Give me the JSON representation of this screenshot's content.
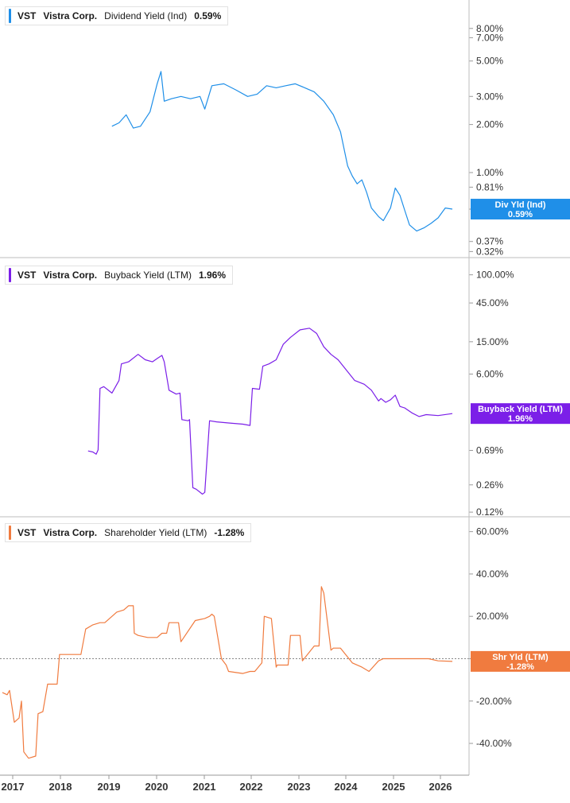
{
  "chart_data": [
    {
      "type": "line",
      "ticker": "VST",
      "company": "Vistra Corp.",
      "metric": "Dividend Yield (Ind)",
      "current_value": "0.59%",
      "callout": [
        "Div Yld (Ind)",
        "0.59%"
      ],
      "color": "#1f8fe8",
      "scale": "log",
      "ylim": [
        0.3,
        11.0
      ],
      "y_ticks": [
        {
          "value": 8.0,
          "label": "8.00%"
        },
        {
          "value": 7.0,
          "label": "7.00%"
        },
        {
          "value": 5.0,
          "label": "5.00%"
        },
        {
          "value": 3.0,
          "label": "3.00%"
        },
        {
          "value": 2.0,
          "label": "2.00%"
        },
        {
          "value": 1.0,
          "label": "1.00%"
        },
        {
          "value": 0.81,
          "label": "0.81%"
        },
        {
          "value": 0.59,
          "label": "0.59%"
        },
        {
          "value": 0.37,
          "label": "0.37%"
        },
        {
          "value": 0.32,
          "label": "0.32%"
        }
      ],
      "x": [
        2019.15,
        2019.3,
        2019.45,
        2019.6,
        2019.75,
        2019.95,
        2020.1,
        2020.18,
        2020.25,
        2020.4,
        2020.6,
        2020.8,
        2021.0,
        2021.1,
        2021.25,
        2021.5,
        2021.75,
        2022.0,
        2022.2,
        2022.4,
        2022.6,
        2022.8,
        2023.0,
        2023.2,
        2023.4,
        2023.6,
        2023.8,
        2023.95,
        2024.1,
        2024.2,
        2024.3,
        2024.4,
        2024.5,
        2024.6,
        2024.75,
        2024.85,
        2025.0,
        2025.1,
        2025.2,
        2025.3,
        2025.4,
        2025.55,
        2025.7,
        2025.85,
        2026.0,
        2026.15,
        2026.3
      ],
      "values": [
        1.95,
        2.05,
        2.3,
        1.9,
        1.95,
        2.4,
        3.6,
        4.3,
        2.8,
        2.9,
        3.0,
        2.9,
        3.0,
        2.5,
        3.5,
        3.6,
        3.3,
        3.0,
        3.1,
        3.5,
        3.4,
        3.5,
        3.6,
        3.4,
        3.2,
        2.8,
        2.3,
        1.8,
        1.1,
        0.95,
        0.85,
        0.9,
        0.75,
        0.6,
        0.53,
        0.5,
        0.6,
        0.8,
        0.72,
        0.58,
        0.47,
        0.43,
        0.45,
        0.48,
        0.52,
        0.6,
        0.59
      ]
    },
    {
      "type": "line",
      "ticker": "VST",
      "company": "Vistra Corp.",
      "metric": "Buyback Yield (LTM)",
      "current_value": "1.96%",
      "callout": [
        "Buyback Yield (LTM)",
        "1.96%"
      ],
      "color": "#7b1fe8",
      "scale": "log",
      "ylim": [
        0.11,
        130
      ],
      "y_ticks": [
        {
          "value": 100,
          "label": "100.00%"
        },
        {
          "value": 45,
          "label": "45.00%"
        },
        {
          "value": 15,
          "label": "15.00%"
        },
        {
          "value": 6,
          "label": "6.00%"
        },
        {
          "value": 0.69,
          "label": "0.69%"
        },
        {
          "value": 0.26,
          "label": "0.26%"
        },
        {
          "value": 0.12,
          "label": "0.12%"
        }
      ],
      "x": [
        2018.65,
        2018.75,
        2018.82,
        2018.86,
        2018.9,
        2018.98,
        2019.15,
        2019.3,
        2019.35,
        2019.5,
        2019.7,
        2019.85,
        2020.0,
        2020.12,
        2020.2,
        2020.25,
        2020.35,
        2020.5,
        2020.58,
        2020.62,
        2020.75,
        2020.78,
        2020.85,
        2020.92,
        2021.05,
        2021.1,
        2021.2,
        2021.35,
        2021.6,
        2021.9,
        2022.05,
        2022.1,
        2022.25,
        2022.32,
        2022.45,
        2022.6,
        2022.75,
        2022.9,
        2023.1,
        2023.3,
        2023.45,
        2023.6,
        2023.75,
        2023.9,
        2024.05,
        2024.25,
        2024.45,
        2024.6,
        2024.75,
        2024.8,
        2024.9,
        2025.0,
        2025.1,
        2025.2,
        2025.3,
        2025.45,
        2025.6,
        2025.75,
        2026.0,
        2026.3
      ],
      "values": [
        0.68,
        0.66,
        0.62,
        0.7,
        4.0,
        4.2,
        3.5,
        5.0,
        8.0,
        8.5,
        10.5,
        9.0,
        8.5,
        9.5,
        10.2,
        8.5,
        3.8,
        3.4,
        3.5,
        1.65,
        1.6,
        1.65,
        0.24,
        0.23,
        0.2,
        0.21,
        1.6,
        1.55,
        1.5,
        1.45,
        1.4,
        4.0,
        3.9,
        7.5,
        8.0,
        9.0,
        14.0,
        17.0,
        21.0,
        22.0,
        19.0,
        13.0,
        10.5,
        9.0,
        7.0,
        5.0,
        4.5,
        3.8,
        2.8,
        3.0,
        2.7,
        2.9,
        3.3,
        2.4,
        2.3,
        2.0,
        1.8,
        1.9,
        1.85,
        1.96
      ]
    },
    {
      "type": "line",
      "ticker": "VST",
      "company": "Vistra Corp.",
      "metric": "Shareholder Yield (LTM)",
      "current_value": "-1.28%",
      "callout": [
        "Shr Yld (LTM)",
        "-1.28%"
      ],
      "color": "#f07b3f",
      "scale": "linear",
      "ylim": [
        -55,
        64
      ],
      "zero_line": true,
      "y_ticks": [
        {
          "value": 60,
          "label": "60.00%"
        },
        {
          "value": 40,
          "label": "40.00%"
        },
        {
          "value": 20,
          "label": "20.00%"
        },
        {
          "value": 0,
          "label": "0.00%"
        },
        {
          "value": -20,
          "label": "-20.00%"
        },
        {
          "value": -40,
          "label": "-40.00%"
        }
      ],
      "x": [
        2016.85,
        2016.95,
        2017.0,
        2017.1,
        2017.2,
        2017.25,
        2017.3,
        2017.4,
        2017.55,
        2017.6,
        2017.7,
        2017.8,
        2017.85,
        2018.0,
        2018.05,
        2018.2,
        2018.5,
        2018.6,
        2018.75,
        2018.9,
        2019.0,
        2019.1,
        2019.25,
        2019.4,
        2019.5,
        2019.6,
        2019.62,
        2019.7,
        2019.9,
        2020.1,
        2020.2,
        2020.3,
        2020.35,
        2020.55,
        2020.6,
        2020.9,
        2021.1,
        2021.2,
        2021.25,
        2021.3,
        2021.45,
        2021.55,
        2021.6,
        2021.9,
        2022.05,
        2022.15,
        2022.3,
        2022.35,
        2022.5,
        2022.6,
        2022.62,
        2022.85,
        2022.9,
        2023.1,
        2023.15,
        2023.4,
        2023.5,
        2023.55,
        2023.6,
        2023.75,
        2023.8,
        2023.95,
        2024.2,
        2024.4,
        2024.55,
        2024.75,
        2024.85,
        2025.15,
        2025.3,
        2025.8,
        2026.0,
        2026.3
      ],
      "values": [
        -16,
        -17,
        -15,
        -30,
        -28,
        -20,
        -44,
        -47,
        -46,
        -26,
        -25,
        -12,
        -12,
        -12,
        2,
        2,
        2,
        14,
        16,
        17,
        17,
        19,
        22,
        23,
        25,
        25,
        12,
        11,
        10,
        10,
        12,
        12,
        17,
        17,
        8,
        18,
        19,
        20,
        21,
        20,
        0,
        -3,
        -6,
        -7,
        -6,
        -6,
        -2,
        20,
        19,
        -4,
        -3,
        -3,
        11,
        11,
        -1,
        6,
        6,
        34,
        31,
        4,
        5,
        5,
        -2,
        -4,
        -6,
        -1,
        0,
        0,
        0,
        0,
        -1,
        -1.28
      ]
    }
  ],
  "x_axis": {
    "tick_labels": [
      "2017",
      "2018",
      "2019",
      "2020",
      "2021",
      "2022",
      "2023",
      "2024",
      "2025",
      "2026"
    ]
  }
}
